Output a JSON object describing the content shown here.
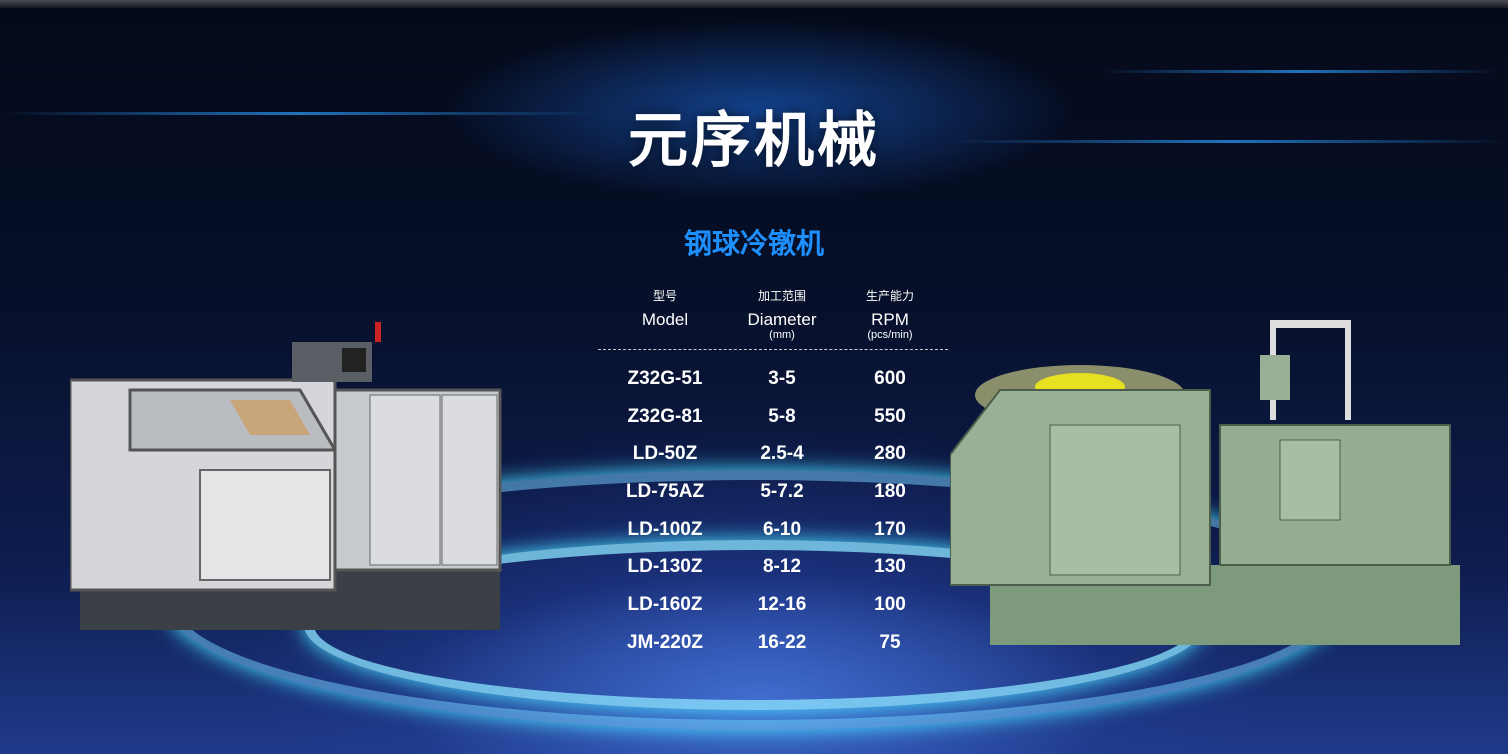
{
  "header": {
    "title": "元序机械"
  },
  "section": {
    "subtitle": "钢球冷镦机"
  },
  "table": {
    "headers": [
      {
        "zh": "型号",
        "en": "Model",
        "unit": ""
      },
      {
        "zh": "加工范围",
        "en": "Diameter",
        "unit": "(mm)"
      },
      {
        "zh": "生产能力",
        "en": "RPM",
        "unit": "(pcs/min)"
      }
    ],
    "rows": [
      [
        "Z32G-51",
        "3-5",
        "600"
      ],
      [
        "Z32G-81",
        "5-8",
        "550"
      ],
      [
        "LD-50Z",
        "2.5-4",
        "280"
      ],
      [
        "LD-75AZ",
        "5-7.2",
        "180"
      ],
      [
        "LD-100Z",
        "6-10",
        "170"
      ],
      [
        "LD-130Z",
        "8-12",
        "130"
      ],
      [
        "LD-160Z",
        "12-16",
        "100"
      ],
      [
        "JM-220Z",
        "16-22",
        "75"
      ]
    ]
  },
  "colors": {
    "title": "#ffffff",
    "subtitle": "#1e8fff",
    "background": "#07102a",
    "glow": "#4ae0ff"
  }
}
